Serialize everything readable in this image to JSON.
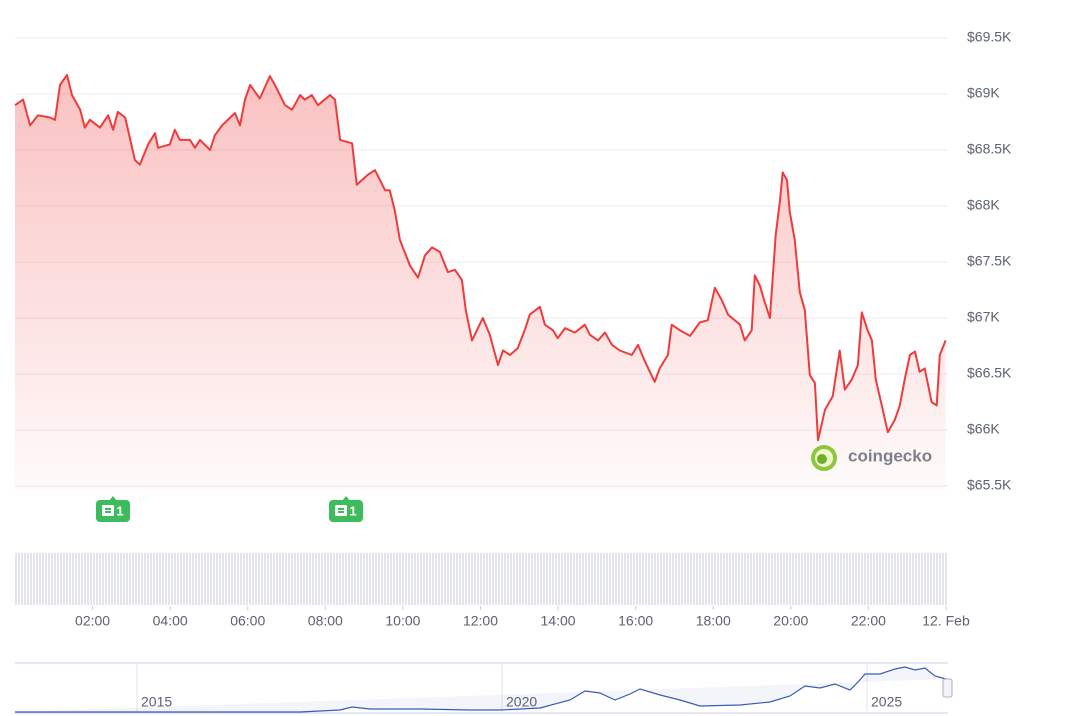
{
  "chart_data": {
    "type": "line",
    "x": [
      0,
      0.21,
      0.39,
      0.59,
      0.9,
      1.03,
      1.16,
      1.34,
      1.47,
      1.68,
      1.8,
      1.93,
      2.19,
      2.4,
      2.53,
      2.65,
      2.84,
      3.09,
      3.22,
      3.43,
      3.61,
      3.69,
      3.99,
      4.12,
      4.25,
      4.51,
      4.64,
      4.77,
      5.03,
      5.15,
      5.34,
      5.67,
      5.8,
      5.93,
      6.06,
      6.31,
      6.57,
      6.7,
      6.96,
      7.14,
      7.35,
      7.47,
      7.65,
      7.81,
      8.12,
      8.25,
      8.38,
      8.69,
      8.81,
      9.1,
      9.28,
      9.54,
      9.66,
      9.79,
      9.92,
      10.18,
      10.39,
      10.57,
      10.75,
      10.95,
      11.16,
      11.34,
      11.52,
      11.62,
      11.78,
      12.06,
      12.24,
      12.45,
      12.58,
      12.76,
      12.96,
      13.14,
      13.27,
      13.53,
      13.66,
      13.87,
      13.99,
      14.18,
      14.43,
      14.69,
      14.82,
      15.03,
      15.21,
      15.39,
      15.59,
      15.9,
      16.06,
      16.24,
      16.49,
      16.62,
      16.83,
      16.93,
      17.14,
      17.4,
      17.65,
      17.86,
      18.04,
      18.22,
      18.38,
      18.69,
      18.81,
      18.99,
      19.07,
      19.2,
      19.33,
      19.46,
      19.61,
      19.72,
      19.79,
      19.9,
      19.97,
      20.1,
      20.23,
      20.36,
      20.49,
      20.62,
      20.7,
      20.88,
      21.08,
      21.26,
      21.39,
      21.57,
      21.73,
      21.83,
      21.98,
      22.09,
      22.19,
      22.37,
      22.5,
      22.68,
      22.81,
      22.94,
      23.07,
      23.2,
      23.32,
      23.45,
      23.63,
      23.76,
      23.84,
      23.99
    ],
    "series": [
      {
        "color": "#ef3b3b",
        "values": [
          68900,
          68950,
          68720,
          68810,
          68790,
          68770,
          69080,
          69170,
          68990,
          68860,
          68700,
          68770,
          68700,
          68810,
          68680,
          68840,
          68790,
          68410,
          68370,
          68550,
          68650,
          68520,
          68550,
          68680,
          68590,
          68590,
          68520,
          68590,
          68500,
          68630,
          68720,
          68830,
          68720,
          68950,
          69080,
          68960,
          69160,
          69080,
          68900,
          68860,
          68990,
          68950,
          68990,
          68900,
          68990,
          68950,
          68590,
          68560,
          68190,
          68280,
          68320,
          68140,
          68140,
          67960,
          67700,
          67470,
          67360,
          67560,
          67630,
          67590,
          67410,
          67430,
          67340,
          67070,
          66800,
          67000,
          66850,
          66580,
          66710,
          66670,
          66730,
          66890,
          67030,
          67100,
          66940,
          66890,
          66820,
          66910,
          66870,
          66940,
          66850,
          66800,
          66870,
          66760,
          66710,
          66670,
          66760,
          66610,
          66430,
          66550,
          66670,
          66940,
          66890,
          66840,
          66960,
          66980,
          67270,
          67160,
          67030,
          66940,
          66800,
          66890,
          67380,
          67290,
          67140,
          67000,
          67740,
          68050,
          68300,
          68230,
          67950,
          67700,
          67230,
          67070,
          66490,
          66420,
          65910,
          66180,
          66300,
          66710,
          66360,
          66450,
          66580,
          67050,
          66890,
          66800,
          66450,
          66180,
          65980,
          66090,
          66220,
          66460,
          66670,
          66700,
          66520,
          66550,
          66250,
          66220,
          66670,
          66800
        ]
      }
    ],
    "xlim": [
      0,
      24
    ],
    "xticks": [
      {
        "value": 2,
        "label": "02:00"
      },
      {
        "value": 4,
        "label": "04:00"
      },
      {
        "value": 6,
        "label": "06:00"
      },
      {
        "value": 8,
        "label": "08:00"
      },
      {
        "value": 10,
        "label": "10:00"
      },
      {
        "value": 12,
        "label": "12:00"
      },
      {
        "value": 14,
        "label": "14:00"
      },
      {
        "value": 16,
        "label": "16:00"
      },
      {
        "value": 18,
        "label": "18:00"
      },
      {
        "value": 20,
        "label": "20:00"
      },
      {
        "value": 22,
        "label": "22:00"
      },
      {
        "value": 24,
        "label": "12. Feb"
      }
    ],
    "ylim": [
      65500,
      69500
    ],
    "yticks": [
      {
        "value": 65500,
        "label": "$65.5K"
      },
      {
        "value": 66000,
        "label": "$66K"
      },
      {
        "value": 66500,
        "label": "$66.5K"
      },
      {
        "value": 67000,
        "label": "$67K"
      },
      {
        "value": 67500,
        "label": "$67.5K"
      },
      {
        "value": 68000,
        "label": "$68K"
      },
      {
        "value": 68500,
        "label": "$68.5K"
      },
      {
        "value": 69000,
        "label": "$69K"
      },
      {
        "value": 69500,
        "label": "$69.5K"
      }
    ],
    "grid": true,
    "news_markers": [
      {
        "label": "1"
      },
      {
        "label": "1"
      }
    ],
    "watermark": "coingecko",
    "navigator": {
      "labels": [
        "2015",
        "2020",
        "2025"
      ]
    }
  }
}
